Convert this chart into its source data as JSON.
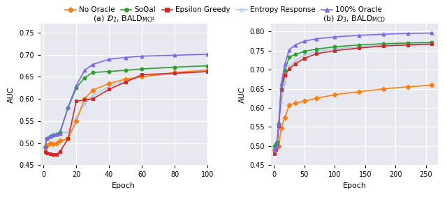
{
  "fig_width": 6.4,
  "fig_height": 2.86,
  "dpi": 100,
  "plot_bg_color": "#e8e8f0",
  "subplot_a": {
    "title": "(a) $\\mathcal{D}_2$, BALD$_{\\mathrm{MCP}}$",
    "xlabel": "Epoch",
    "ylabel": "AUC",
    "xlim": [
      -2,
      100
    ],
    "ylim": [
      0.45,
      0.77
    ],
    "yticks": [
      0.45,
      0.5,
      0.55,
      0.6,
      0.65,
      0.7,
      0.75
    ],
    "xticks": [
      0,
      20,
      40,
      60,
      80,
      100
    ],
    "series": {
      "no_oracle": {
        "x": [
          1,
          2,
          4,
          6,
          8,
          10,
          15,
          20,
          25,
          30,
          40,
          50,
          60,
          80,
          100
        ],
        "y": [
          0.49,
          0.495,
          0.5,
          0.498,
          0.5,
          0.505,
          0.51,
          0.55,
          0.6,
          0.62,
          0.635,
          0.645,
          0.65,
          0.66,
          0.665
        ],
        "color": "#ff7f0e",
        "marker": "D",
        "label": "No Oracle",
        "zorder": 3
      },
      "soqal": {
        "x": [
          1,
          2,
          4,
          6,
          8,
          10,
          15,
          20,
          25,
          30,
          40,
          50,
          60,
          80,
          100
        ],
        "y": [
          0.492,
          0.51,
          0.515,
          0.518,
          0.52,
          0.525,
          0.58,
          0.625,
          0.648,
          0.66,
          0.662,
          0.665,
          0.668,
          0.672,
          0.675
        ],
        "color": "#2ca02c",
        "marker": "o",
        "label": "SoQal",
        "zorder": 3
      },
      "epsilon_greedy": {
        "x": [
          1,
          2,
          4,
          6,
          8,
          10,
          15,
          20,
          25,
          30,
          40,
          50,
          60,
          80,
          100
        ],
        "y": [
          0.48,
          0.478,
          0.476,
          0.474,
          0.475,
          0.48,
          0.51,
          0.595,
          0.598,
          0.6,
          0.622,
          0.638,
          0.655,
          0.658,
          0.662
        ],
        "color": "#d62728",
        "marker": "s",
        "label": "Epsilon Greedy",
        "zorder": 3
      },
      "entropy_response": {
        "x": [
          1,
          2,
          4,
          6,
          8,
          10,
          15,
          20,
          25,
          30,
          40,
          50,
          60,
          80,
          100
        ],
        "y": [
          0.492,
          0.51,
          0.515,
          0.518,
          0.52,
          0.522,
          0.525,
          0.558,
          0.588,
          0.608,
          0.628,
          0.642,
          0.65,
          0.657,
          0.662
        ],
        "color": "#aec7e8",
        "marker": "x",
        "label": "Entropy Response",
        "zorder": 2
      },
      "oracle_100": {
        "x": [
          1,
          2,
          4,
          6,
          8,
          10,
          15,
          20,
          25,
          30,
          40,
          50,
          60,
          80,
          100
        ],
        "y": [
          0.492,
          0.51,
          0.515,
          0.518,
          0.52,
          0.522,
          0.582,
          0.63,
          0.665,
          0.678,
          0.69,
          0.694,
          0.697,
          0.699,
          0.701
        ],
        "color": "#7b68ee",
        "marker": "^",
        "label": "100% Oracle",
        "zorder": 4
      }
    }
  },
  "subplot_b": {
    "title": "(b) $\\mathcal{D}_3$, BALD$_{\\mathrm{MCD}}$",
    "xlabel": "Epoch",
    "ylabel": "AUC",
    "xlim": [
      -5,
      270
    ],
    "ylim": [
      0.45,
      0.82
    ],
    "yticks": [
      0.45,
      0.5,
      0.55,
      0.6,
      0.65,
      0.7,
      0.75,
      0.8
    ],
    "xticks": [
      0,
      50,
      100,
      150,
      200,
      250
    ],
    "series": {
      "no_oracle": {
        "x": [
          1,
          3,
          5,
          8,
          12,
          18,
          25,
          35,
          50,
          70,
          100,
          140,
          180,
          220,
          260
        ],
        "y": [
          0.49,
          0.495,
          0.498,
          0.5,
          0.548,
          0.575,
          0.608,
          0.612,
          0.618,
          0.625,
          0.635,
          0.642,
          0.65,
          0.655,
          0.66
        ],
        "color": "#ff7f0e",
        "marker": "D",
        "label": "No Oracle",
        "zorder": 3
      },
      "soqal": {
        "x": [
          1,
          3,
          5,
          8,
          12,
          18,
          25,
          35,
          50,
          70,
          100,
          140,
          180,
          220,
          260
        ],
        "y": [
          0.5,
          0.505,
          0.51,
          0.558,
          0.65,
          0.698,
          0.733,
          0.74,
          0.748,
          0.754,
          0.76,
          0.765,
          0.768,
          0.77,
          0.772
        ],
        "color": "#2ca02c",
        "marker": "o",
        "label": "SoQal",
        "zorder": 3
      },
      "epsilon_greedy": {
        "x": [
          1,
          3,
          5,
          8,
          12,
          18,
          25,
          35,
          50,
          70,
          100,
          140,
          180,
          220,
          260
        ],
        "y": [
          0.48,
          0.49,
          0.502,
          0.552,
          0.648,
          0.685,
          0.703,
          0.715,
          0.73,
          0.742,
          0.75,
          0.757,
          0.762,
          0.765,
          0.767
        ],
        "color": "#d62728",
        "marker": "s",
        "label": "Epsilon Greedy",
        "zorder": 3
      },
      "entropy_response": {
        "x": [
          1,
          3,
          5,
          8,
          12,
          18,
          25,
          35,
          50,
          70,
          100,
          140,
          180,
          220,
          260
        ],
        "y": [
          0.492,
          0.5,
          0.508,
          0.552,
          0.615,
          0.665,
          0.708,
          0.723,
          0.738,
          0.748,
          0.755,
          0.76,
          0.764,
          0.767,
          0.769
        ],
        "color": "#aec7e8",
        "marker": "x",
        "label": "Entropy Response",
        "zorder": 2
      },
      "oracle_100": {
        "x": [
          1,
          3,
          5,
          8,
          12,
          18,
          25,
          35,
          50,
          70,
          100,
          140,
          180,
          220,
          260
        ],
        "y": [
          0.49,
          0.497,
          0.503,
          0.558,
          0.663,
          0.715,
          0.752,
          0.765,
          0.775,
          0.781,
          0.786,
          0.79,
          0.793,
          0.795,
          0.796
        ],
        "color": "#7b68ee",
        "marker": "^",
        "label": "100% Oracle",
        "zorder": 4
      }
    }
  },
  "legend": {
    "labels": [
      "No Oracle",
      "SoQal",
      "Epsilon Greedy",
      "Entropy Response",
      "100% Oracle"
    ],
    "colors": [
      "#ff7f0e",
      "#2ca02c",
      "#d62728",
      "#aec7e8",
      "#7b68ee"
    ],
    "markers": [
      "D",
      "o",
      "s",
      "x",
      "^"
    ],
    "fontsize": 7.5
  }
}
